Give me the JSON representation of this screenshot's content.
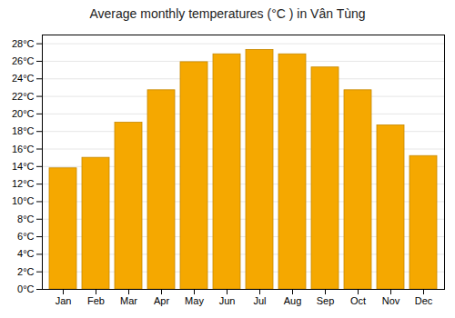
{
  "chart_data": {
    "type": "bar",
    "title": "Average monthly temperatures (°C ) in Vân Tùng",
    "categories": [
      "Jan",
      "Feb",
      "Mar",
      "Apr",
      "May",
      "Jun",
      "Jul",
      "Aug",
      "Sep",
      "Oct",
      "Nov",
      "Dec"
    ],
    "values": [
      13.8,
      15.0,
      19.0,
      22.7,
      25.9,
      26.8,
      27.3,
      26.8,
      25.3,
      22.7,
      18.7,
      15.2
    ],
    "color": "#F5A800",
    "ylim": [
      0,
      29
    ],
    "yticks": [
      {
        "value": 0,
        "label": "0°C"
      },
      {
        "value": 2,
        "label": "2°C"
      },
      {
        "value": 4,
        "label": "4°C"
      },
      {
        "value": 6,
        "label": "6°C"
      },
      {
        "value": 8,
        "label": "8°C"
      },
      {
        "value": 10,
        "label": "10°C"
      },
      {
        "value": 12,
        "label": "12°C"
      },
      {
        "value": 14,
        "label": "14°C"
      },
      {
        "value": 16,
        "label": "16°C"
      },
      {
        "value": 18,
        "label": "18°C"
      },
      {
        "value": 20,
        "label": "20°C"
      },
      {
        "value": 22,
        "label": "22°C"
      },
      {
        "value": 24,
        "label": "24°C"
      },
      {
        "value": 26,
        "label": "26°C"
      },
      {
        "value": 28,
        "label": "28°C"
      }
    ],
    "grid": true
  }
}
